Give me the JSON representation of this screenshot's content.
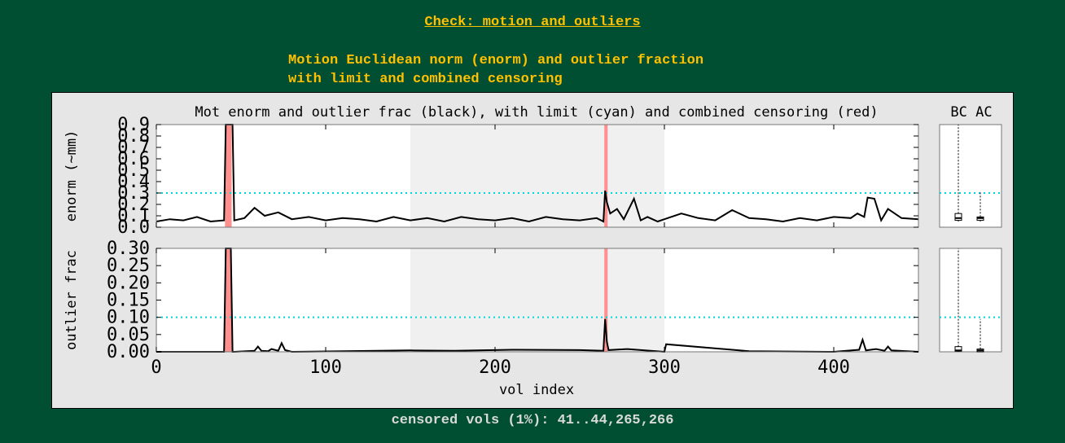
{
  "page": {
    "title": "Check: motion and outliers",
    "subtitle_line1": "Motion Euclidean norm (enorm) and outlier fraction",
    "subtitle_line2": "with limit and combined censoring",
    "footer": "censored vols (1%): 41..44,265,266"
  },
  "colors": {
    "background": "#004f32",
    "heading": "#ffc000",
    "footer": "#d9d9d9",
    "figure_bg": "#e6e6e6",
    "series": "#000000",
    "limit": "#00d8d8",
    "censor": "#ff9090",
    "shade": "#f0f0f0"
  },
  "chart_data": {
    "type": "line",
    "title": "Mot enorm and outlier frac (black), with limit (cyan) and combined censoring (red)",
    "boxplot_header": "BC AC",
    "xlabel": "vol index",
    "xlim": [
      0,
      450
    ],
    "xticks": [
      "0",
      "100",
      "200",
      "300",
      "400"
    ],
    "shaded_region": [
      150,
      300
    ],
    "censored_intervals": [
      [
        41,
        44
      ],
      [
        265,
        266
      ]
    ],
    "panels": [
      {
        "name": "enorm",
        "ylabel": "enorm (~mm)",
        "ylim": [
          0,
          0.9
        ],
        "yticks": [
          "0.0",
          "0.1",
          "0.2",
          "0.3",
          "0.4",
          "0.5",
          "0.6",
          "0.7",
          "0.8",
          "0.9"
        ],
        "limit": 0.3,
        "x": [
          0,
          8,
          16,
          24,
          32,
          40,
          41,
          42,
          43,
          44,
          45,
          46,
          52,
          58,
          64,
          72,
          80,
          90,
          100,
          110,
          120,
          130,
          140,
          150,
          160,
          170,
          180,
          190,
          200,
          210,
          220,
          230,
          240,
          250,
          260,
          264,
          265,
          266,
          268,
          272,
          276,
          282,
          286,
          290,
          296,
          300,
          310,
          320,
          330,
          340,
          350,
          360,
          370,
          380,
          390,
          400,
          410,
          414,
          418,
          420,
          424,
          428,
          432,
          440,
          450
        ],
        "values": [
          0.05,
          0.07,
          0.06,
          0.09,
          0.05,
          0.06,
          0.9,
          0.9,
          0.9,
          0.9,
          0.9,
          0.06,
          0.08,
          0.17,
          0.1,
          0.13,
          0.07,
          0.09,
          0.06,
          0.08,
          0.07,
          0.05,
          0.09,
          0.06,
          0.08,
          0.05,
          0.09,
          0.07,
          0.06,
          0.08,
          0.05,
          0.09,
          0.07,
          0.06,
          0.08,
          0.05,
          0.32,
          0.22,
          0.12,
          0.16,
          0.07,
          0.25,
          0.06,
          0.09,
          0.05,
          0.07,
          0.12,
          0.08,
          0.06,
          0.15,
          0.08,
          0.07,
          0.05,
          0.08,
          0.06,
          0.09,
          0.08,
          0.12,
          0.09,
          0.26,
          0.25,
          0.06,
          0.16,
          0.08,
          0.07
        ]
      },
      {
        "name": "outlier frac",
        "ylabel": "outlier frac",
        "ylim": [
          0,
          0.3
        ],
        "yticks": [
          "0.00",
          "0.05",
          "0.10",
          "0.15",
          "0.20",
          "0.25",
          "0.30"
        ],
        "limit": 0.1,
        "x": [
          0,
          30,
          40,
          41,
          42,
          43,
          44,
          45,
          46,
          58,
          60,
          62,
          66,
          68,
          72,
          74,
          76,
          80,
          150,
          176,
          210,
          250,
          264,
          265,
          266,
          267,
          278,
          300,
          301,
          350,
          400,
          415,
          417,
          419,
          425,
          430,
          432,
          434,
          450
        ],
        "values": [
          0,
          0,
          0,
          0.3,
          0.3,
          0.3,
          0.3,
          0,
          0,
          0.003,
          0.015,
          0.003,
          0.002,
          0.008,
          0.003,
          0.025,
          0.005,
          0,
          0.004,
          0.003,
          0.006,
          0.005,
          0.003,
          0.095,
          0.03,
          0.005,
          0.008,
          0,
          0.022,
          0.002,
          0,
          0.006,
          0.035,
          0.004,
          0.008,
          0.003,
          0.015,
          0.004,
          0
        ]
      }
    ]
  }
}
